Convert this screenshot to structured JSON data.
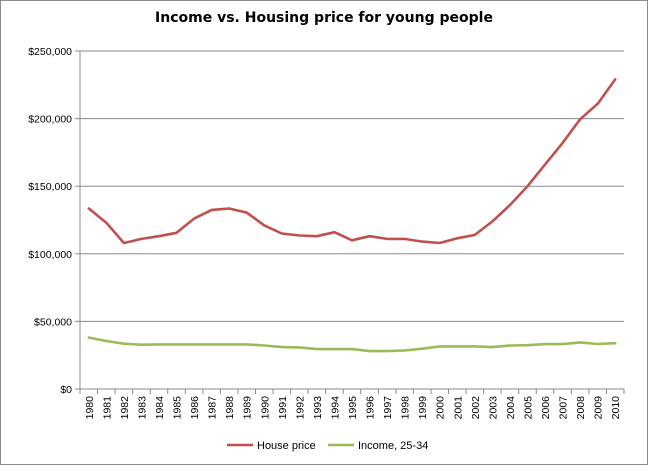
{
  "chart_data": {
    "type": "line",
    "title": "Income vs. Housing price for young people",
    "xlabel": "",
    "ylabel": "",
    "ylim": [
      0,
      250000
    ],
    "yticks": [
      "$0",
      "$50,000",
      "$100,000",
      "$150,000",
      "$200,000",
      "$250,000"
    ],
    "grid": true,
    "legend_position": "bottom",
    "x": [
      "1980",
      "1981",
      "1982",
      "1983",
      "1984",
      "1985",
      "1986",
      "1987",
      "1988",
      "1989",
      "1990",
      "1991",
      "1992",
      "1993",
      "1994",
      "1995",
      "1996",
      "1997",
      "1998",
      "1999",
      "2000",
      "2001",
      "2002",
      "2003",
      "2004",
      "2005",
      "2006",
      "2007",
      "2008",
      "2009",
      "2010"
    ],
    "series": [
      {
        "name": "House price",
        "color": "#c0504d",
        "values": [
          133500,
          123000,
          108000,
          111000,
          113000,
          115500,
          126000,
          132500,
          133500,
          130500,
          121000,
          115000,
          113500,
          113000,
          116000,
          110000,
          113000,
          111000,
          111000,
          109000,
          108000,
          111500,
          114000,
          124000,
          136000,
          150000,
          166000,
          182000,
          199500,
          211000,
          229000
        ]
      },
      {
        "name": "Income, 25-34",
        "color": "#9bbb59",
        "values": [
          38000,
          35500,
          33500,
          32800,
          33000,
          33000,
          33000,
          33000,
          33000,
          33000,
          32200,
          31000,
          30800,
          29500,
          29500,
          29500,
          28000,
          28000,
          28500,
          29800,
          31500,
          31500,
          31500,
          31000,
          32200,
          32400,
          33200,
          33200,
          34500,
          33300,
          33900
        ]
      }
    ]
  }
}
